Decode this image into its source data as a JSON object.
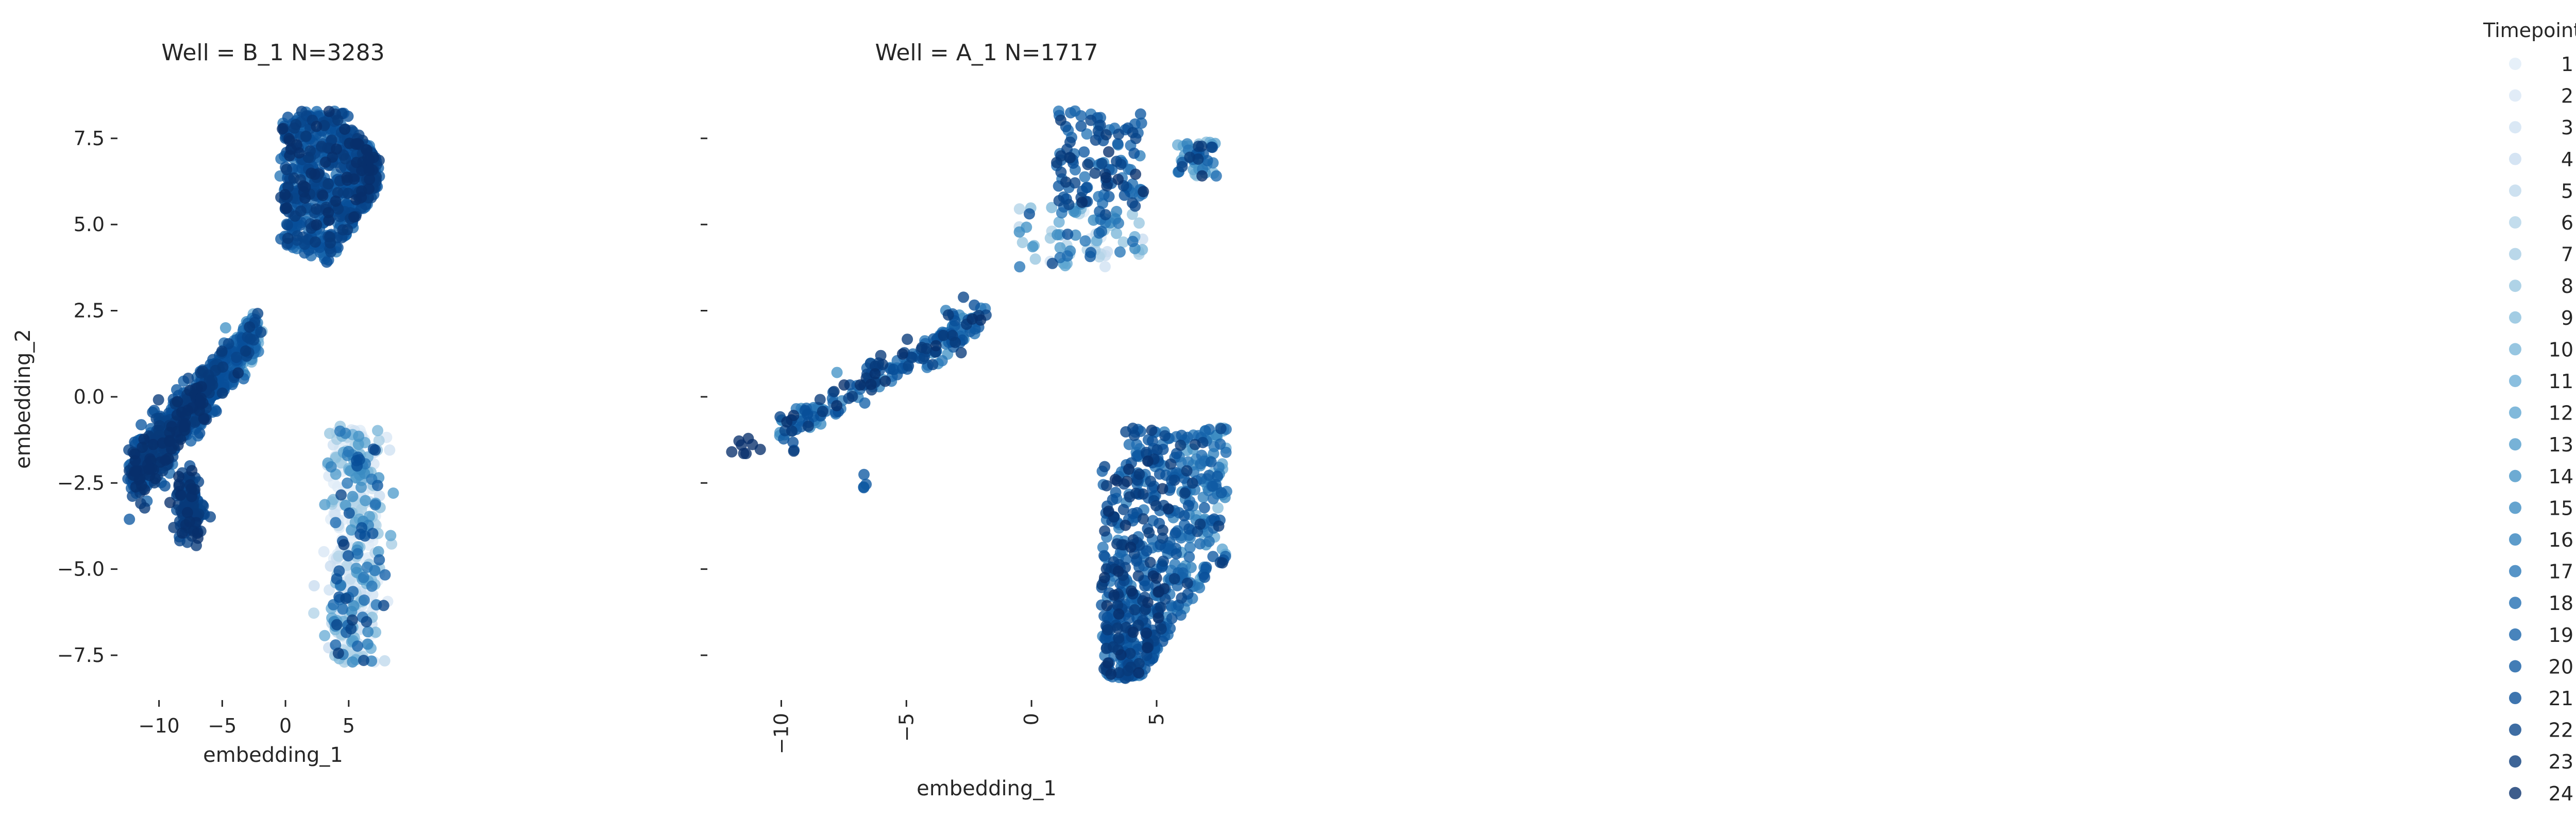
{
  "figure": {
    "legend_title": "Timepoint",
    "legend_labels": [
      "1",
      "2",
      "3",
      "4",
      "5",
      "6",
      "7",
      "8",
      "9",
      "10",
      "11",
      "12",
      "13",
      "14",
      "15",
      "16",
      "17",
      "18",
      "19",
      "20",
      "21",
      "22",
      "23",
      "24"
    ]
  },
  "chart_data": [
    {
      "type": "scatter",
      "title": "Well = B_1 N=3283",
      "xlabel": "embedding_1",
      "ylabel": "embedding_2",
      "xlim": [
        -13,
        9
      ],
      "ylim": [
        -8.8,
        9.2
      ],
      "xticks": [
        -10,
        -5,
        0,
        5
      ],
      "xtick_labels": [
        "−10",
        "−5",
        "0",
        "5"
      ],
      "yticks": [
        7.5,
        5.0,
        2.5,
        0.0,
        -2.5,
        -5.0,
        -7.5
      ],
      "ytick_labels": [
        "7.5",
        "5.0",
        "2.5",
        "0.0",
        "−2.5",
        "−5.0",
        "−7.5"
      ],
      "color_by": "Timepoint",
      "colormap": [
        "#f7fbff",
        "#deebf7",
        "#c6dbef",
        "#9ecae1",
        "#6baed6",
        "#4292c6",
        "#2171b5",
        "#08519c",
        "#08306b"
      ],
      "clusters": [
        {
          "region": "upper cluster",
          "x_range": [
            -0.8,
            7.5
          ],
          "y_range": [
            3.5,
            8.4
          ],
          "timepoint_mix": "mostly late (dark)"
        },
        {
          "region": "left arm",
          "x_range": [
            -12.3,
            -1.8
          ],
          "y_range": [
            -4.0,
            2.8
          ],
          "timepoint_mix": "late, with early points along top edge"
        },
        {
          "region": "lower-right cluster",
          "x_range": [
            2.5,
            8.0
          ],
          "y_range": [
            -7.8,
            -0.8
          ],
          "timepoint_mix": "mostly early (light)"
        }
      ]
    },
    {
      "type": "scatter",
      "title": "Well = A_1 N=1717",
      "xlabel": "embedding_1",
      "ylabel": "",
      "xlim": [
        -12.5,
        8.5
      ],
      "ylim": [
        -8.8,
        9.2
      ],
      "xticks": [
        -10,
        -5,
        0,
        5
      ],
      "xtick_labels": [
        "−10",
        "−5",
        "0",
        "5"
      ],
      "xtick_rotation": 90,
      "yticks": [
        7.5,
        5.0,
        2.5,
        0.0,
        -2.5,
        -5.0,
        -7.5
      ],
      "ytick_labels": [],
      "color_by": "Timepoint",
      "colormap": [
        "#f7fbff",
        "#deebf7",
        "#c6dbef",
        "#9ecae1",
        "#6baed6",
        "#4292c6",
        "#2171b5",
        "#08519c",
        "#08306b"
      ],
      "clusters": [
        {
          "region": "upper cluster",
          "x_range": [
            -0.5,
            7.3
          ],
          "y_range": [
            3.6,
            8.4
          ],
          "timepoint_mix": "mixed, dark on top"
        },
        {
          "region": "left arm",
          "x_range": [
            -12.0,
            -2.0
          ],
          "y_range": [
            -2.8,
            2.5
          ],
          "timepoint_mix": "mostly late (dark)"
        },
        {
          "region": "lower-right cluster",
          "x_range": [
            2.5,
            8.0
          ],
          "y_range": [
            -8.2,
            -0.8
          ],
          "timepoint_mix": "mixed, dark core with light edges"
        }
      ]
    }
  ]
}
